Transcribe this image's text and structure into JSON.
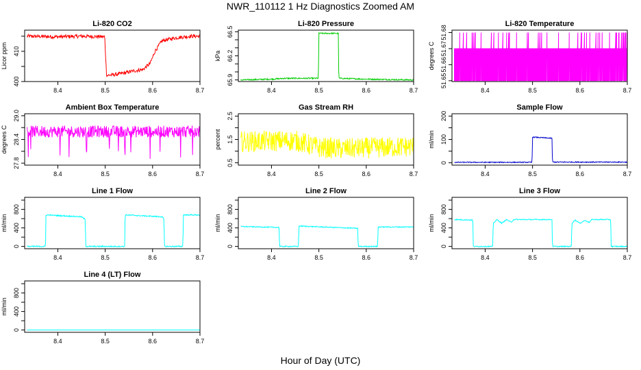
{
  "page": {
    "title": "NWR_110112  1 Hz Diagnostics Zoomed AM",
    "xlabel": "Hour of Day (UTC)"
  },
  "chart_data": [
    {
      "type": "line",
      "title": "Li-820 CO2",
      "ylabel": "Licor ppm",
      "color": "#ff0000",
      "xlim": [
        8.33,
        8.7
      ],
      "ylim": [
        400,
        417
      ],
      "xticks": [
        8.4,
        8.5,
        8.6,
        8.7
      ],
      "xtick_labels": [
        "8.4",
        "8.5",
        "8.6",
        "8.7"
      ],
      "yticks": [
        400,
        405,
        410,
        415
      ],
      "ytick_labels": [
        "400",
        "",
        "410",
        ""
      ],
      "series": [
        {
          "x": [
            8.335,
            8.4,
            8.45,
            8.499,
            8.5,
            8.503,
            8.53,
            8.56,
            8.58,
            8.595,
            8.605,
            8.62,
            8.65,
            8.68,
            8.7
          ],
          "y": [
            415,
            414.8,
            415,
            414.8,
            411,
            402,
            402.5,
            403.5,
            404,
            406,
            410,
            413.5,
            414.5,
            415,
            415
          ],
          "noise": 0.6
        }
      ]
    },
    {
      "type": "line",
      "title": "Li-820 Pressure",
      "ylabel": "kPa",
      "color": "#00cc00",
      "xlim": [
        8.33,
        8.7
      ],
      "ylim": [
        65.88,
        66.52
      ],
      "xticks": [
        8.4,
        8.5,
        8.6,
        8.7
      ],
      "xtick_labels": [
        "8.4",
        "8.5",
        "8.6",
        "8.7"
      ],
      "yticks": [
        65.9,
        66.0,
        66.1,
        66.2,
        66.3,
        66.4,
        66.5
      ],
      "ytick_labels": [
        "65.9",
        "",
        "",
        "66.2",
        "",
        "",
        "66.5"
      ],
      "series": [
        {
          "x": [
            8.335,
            8.4,
            8.43,
            8.499,
            8.5,
            8.541,
            8.542,
            8.6,
            8.7
          ],
          "y": [
            65.9,
            65.91,
            65.92,
            65.92,
            66.48,
            66.48,
            65.92,
            65.91,
            65.9
          ],
          "noise": 0.008
        }
      ]
    },
    {
      "type": "line",
      "title": "Li-820 Temperature",
      "ylabel": "degrees C",
      "color": "#ff00ff",
      "xlim": [
        8.33,
        8.7
      ],
      "ylim": [
        51.6495,
        51.6815
      ],
      "xticks": [
        8.4,
        8.5,
        8.6,
        8.7
      ],
      "xtick_labels": [
        "8.4",
        "8.5",
        "8.6",
        "8.7"
      ],
      "yticks": [
        51.65,
        51.66,
        51.67,
        51.68
      ],
      "ytick_labels": [
        "51.65",
        "51.66",
        "51.67",
        "51.68"
      ],
      "series": [
        {
          "x": [
            8.335,
            8.7
          ],
          "y": [
            51.65,
            51.67
          ],
          "pattern": "binary",
          "spike_level": 51.68,
          "end_x": 8.7
        }
      ]
    },
    {
      "type": "line",
      "title": "Ambient Box Temperature",
      "ylabel": "degrees C",
      "color": "#ff00ff",
      "xlim": [
        8.33,
        8.7
      ],
      "ylim": [
        27.75,
        29.05
      ],
      "xticks": [
        8.4,
        8.5,
        8.6,
        8.7
      ],
      "xtick_labels": [
        "8.4",
        "8.5",
        "8.6",
        "8.7"
      ],
      "yticks": [
        27.8,
        28.1,
        28.4,
        28.7,
        29.0
      ],
      "ytick_labels": [
        "27.8",
        "",
        "28.4",
        "",
        "29.0"
      ],
      "series": [
        {
          "x": [
            8.335,
            8.7
          ],
          "y": [
            28.6,
            28.6
          ],
          "noise": 0.15,
          "dips": 27.9
        }
      ]
    },
    {
      "type": "line",
      "title": "Gas Stream RH",
      "ylabel": "percent",
      "color": "#ffff00",
      "xlim": [
        8.33,
        8.7
      ],
      "ylim": [
        0.4,
        2.6
      ],
      "xticks": [
        8.4,
        8.5,
        8.6,
        8.7
      ],
      "xtick_labels": [
        "8.4",
        "8.5",
        "8.6",
        "8.7"
      ],
      "yticks": [
        0.5,
        1.0,
        1.5,
        2.0,
        2.5
      ],
      "ytick_labels": [
        "0.5",
        "",
        "1.5",
        "",
        "2.5"
      ],
      "series": [
        {
          "x": [
            8.335,
            8.45,
            8.5,
            8.55,
            8.7
          ],
          "y": [
            1.4,
            1.45,
            1.15,
            1.1,
            1.2
          ],
          "noise": 0.45
        }
      ]
    },
    {
      "type": "line",
      "title": "Sample Flow",
      "ylabel": "ml/min",
      "color": "#0000cc",
      "xlim": [
        8.33,
        8.7
      ],
      "ylim": [
        -10,
        210
      ],
      "xticks": [
        8.4,
        8.5,
        8.6,
        8.7
      ],
      "xtick_labels": [
        "8.4",
        "8.5",
        "8.6",
        "8.7"
      ],
      "yticks": [
        0,
        50,
        100,
        150,
        200
      ],
      "ytick_labels": [
        "0",
        "",
        "100",
        "",
        "200"
      ],
      "series": [
        {
          "x": [
            8.335,
            8.499,
            8.5,
            8.541,
            8.542,
            8.7
          ],
          "y": [
            2,
            2,
            110,
            105,
            3,
            3
          ],
          "noise": 2
        }
      ]
    },
    {
      "type": "line",
      "title": "Line 1 Flow",
      "ylabel": "ml/min",
      "color": "#00ffff",
      "xlim": [
        8.33,
        8.7
      ],
      "ylim": [
        -50,
        1060
      ],
      "xticks": [
        8.4,
        8.5,
        8.6,
        8.7
      ],
      "xtick_labels": [
        "8.4",
        "8.5",
        "8.6",
        "8.7"
      ],
      "yticks": [
        0,
        200,
        400,
        600,
        800,
        1000
      ],
      "ytick_labels": [
        "0",
        "",
        "400",
        "",
        "800",
        ""
      ],
      "series": [
        {
          "x": [
            8.335,
            8.374,
            8.375,
            8.45,
            8.458,
            8.459,
            8.541,
            8.542,
            8.62,
            8.624,
            8.625,
            8.664,
            8.665,
            8.7
          ],
          "y": [
            0,
            0,
            680,
            640,
            580,
            0,
            0,
            680,
            640,
            590,
            0,
            0,
            680,
            680
          ],
          "noise": 12
        }
      ]
    },
    {
      "type": "line",
      "title": "Line 2 Flow",
      "ylabel": "ml/min",
      "color": "#00ffff",
      "xlim": [
        8.33,
        8.7
      ],
      "ylim": [
        -50,
        1060
      ],
      "xticks": [
        8.4,
        8.5,
        8.6,
        8.7
      ],
      "xtick_labels": [
        "8.4",
        "8.5",
        "8.6",
        "8.7"
      ],
      "yticks": [
        0,
        200,
        400,
        600,
        800,
        1000
      ],
      "ytick_labels": [
        "0",
        "",
        "400",
        "",
        "800",
        ""
      ],
      "series": [
        {
          "x": [
            8.335,
            8.416,
            8.417,
            8.457,
            8.458,
            8.582,
            8.583,
            8.624,
            8.625,
            8.7
          ],
          "y": [
            430,
            410,
            0,
            0,
            440,
            390,
            0,
            0,
            420,
            420
          ],
          "noise": 10
        }
      ]
    },
    {
      "type": "line",
      "title": "Line 3 Flow",
      "ylabel": "ml/min",
      "color": "#00ffff",
      "xlim": [
        8.33,
        8.7
      ],
      "ylim": [
        -50,
        1060
      ],
      "xticks": [
        8.4,
        8.5,
        8.6,
        8.7
      ],
      "xtick_labels": [
        "8.4",
        "8.5",
        "8.6",
        "8.7"
      ],
      "yticks": [
        0,
        200,
        400,
        600,
        800,
        1000
      ],
      "ytick_labels": [
        "0",
        "",
        "400",
        "",
        "800",
        ""
      ],
      "series": [
        {
          "x": [
            8.335,
            8.374,
            8.375,
            8.416,
            8.417,
            8.425,
            8.435,
            8.445,
            8.455,
            8.46,
            8.541,
            8.542,
            8.582,
            8.583,
            8.59,
            8.6,
            8.61,
            8.62,
            8.625,
            8.665,
            8.666,
            8.7
          ],
          "y": [
            580,
            570,
            0,
            0,
            500,
            580,
            500,
            580,
            520,
            580,
            580,
            0,
            0,
            500,
            570,
            500,
            560,
            520,
            580,
            580,
            0,
            0
          ],
          "noise": 10
        }
      ]
    },
    {
      "type": "line",
      "title": "Line 4 (LT) Flow",
      "ylabel": "ml/min",
      "color": "#00ffff",
      "xlim": [
        8.33,
        8.7
      ],
      "ylim": [
        -50,
        1060
      ],
      "xticks": [
        8.4,
        8.5,
        8.6,
        8.7
      ],
      "xtick_labels": [
        "8.4",
        "8.5",
        "8.6",
        "8.7"
      ],
      "yticks": [
        0,
        200,
        400,
        600,
        800,
        1000
      ],
      "ytick_labels": [
        "0",
        "",
        "400",
        "",
        "800",
        ""
      ],
      "series": [
        {
          "x": [
            8.335,
            8.7
          ],
          "y": [
            0,
            0
          ],
          "noise": 0
        }
      ]
    }
  ]
}
